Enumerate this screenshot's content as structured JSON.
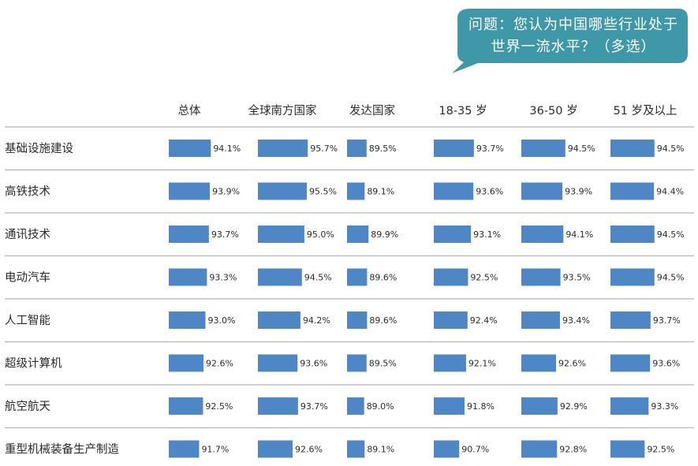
{
  "question": {
    "text": "问题：您认为中国哪些行业处于世界一流水平？（多选）",
    "bubble_color": "#3e98a8"
  },
  "chart_data": {
    "type": "bar",
    "orientation": "horizontal",
    "bar_color": "#4f86c6",
    "value_suffix": "%",
    "groups": [
      "总体",
      "全球南方国家",
      "发达国家",
      "18-35 岁",
      "36-50 岁",
      "51 岁及以上"
    ],
    "categories": [
      "基础设施建设",
      "高铁技术",
      "通讯技术",
      "电动汽车",
      "人工智能",
      "超级计算机",
      "航空航天",
      "重型机械装备生产制造"
    ],
    "series": [
      {
        "values": [
          94.1,
          93.9,
          93.7,
          93.3,
          93.0,
          92.6,
          92.5,
          91.7
        ]
      },
      {
        "values": [
          95.7,
          95.5,
          95.0,
          94.5,
          94.2,
          93.6,
          93.7,
          92.6
        ]
      },
      {
        "values": [
          89.5,
          89.1,
          89.9,
          89.6,
          89.6,
          89.5,
          89.0,
          89.1
        ]
      },
      {
        "values": [
          93.7,
          93.6,
          93.1,
          92.5,
          92.4,
          92.1,
          91.8,
          90.7
        ]
      },
      {
        "values": [
          94.5,
          93.9,
          94.1,
          93.5,
          93.4,
          92.6,
          92.9,
          92.8
        ]
      },
      {
        "values": [
          94.5,
          94.4,
          94.5,
          94.5,
          93.7,
          93.6,
          93.3,
          92.5
        ]
      }
    ]
  }
}
